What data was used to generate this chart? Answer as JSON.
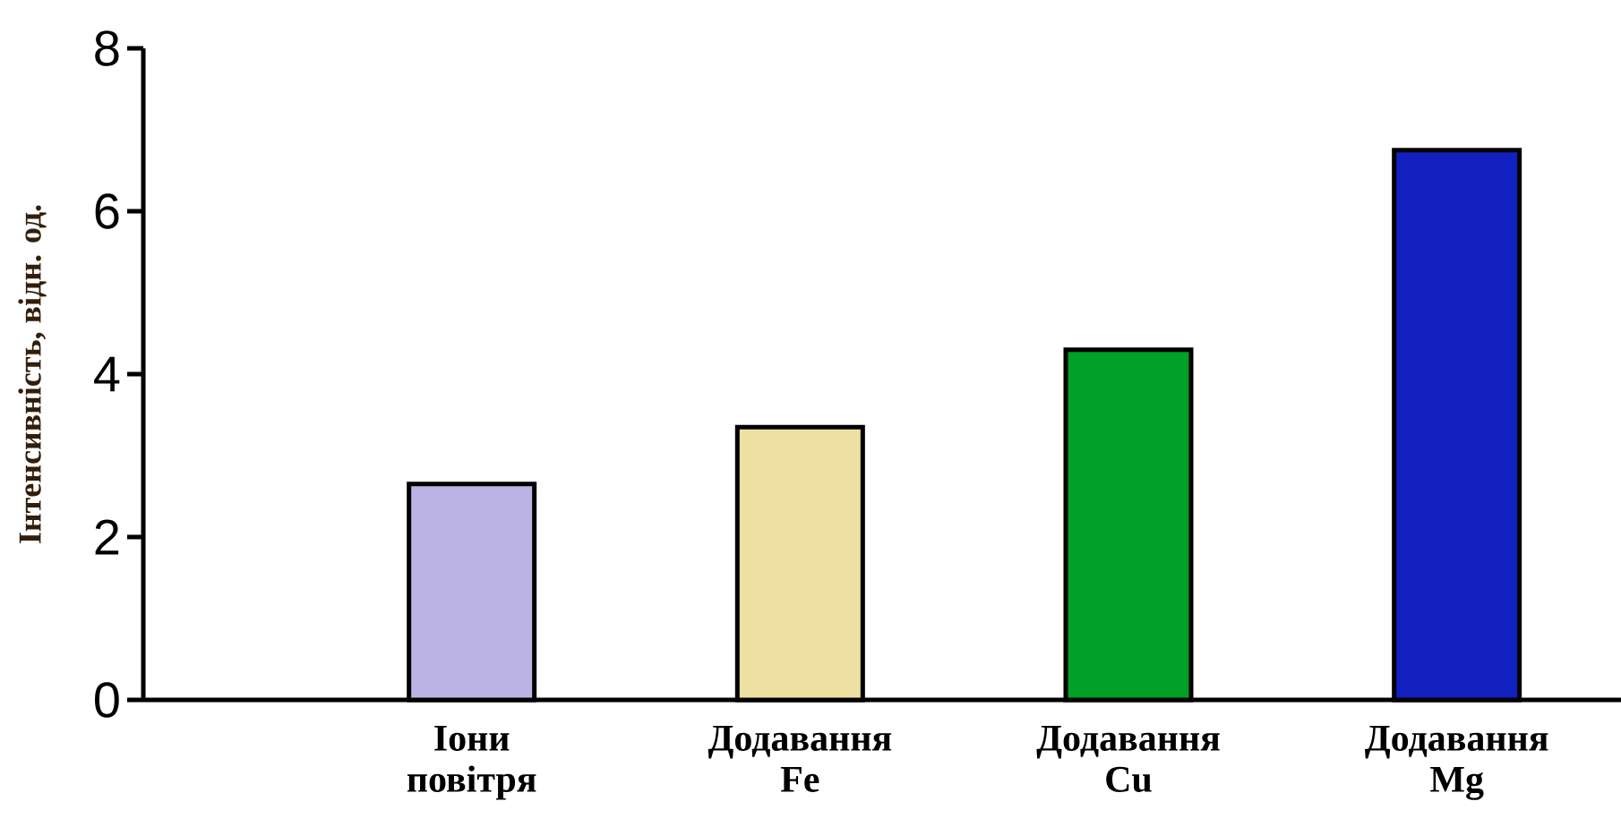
{
  "chart_data": {
    "type": "bar",
    "ylabel": "Інтенсивність, відн. од.",
    "categories": [
      "Іони повітря",
      "Додавання Fe",
      "Додавання Cu",
      "Додавання Mg"
    ],
    "values": [
      2.65,
      3.35,
      4.3,
      6.75
    ],
    "colors": [
      "#bbb3e3",
      "#ede0a0",
      "#009f25",
      "#1320c0"
    ],
    "ylim": [
      0,
      8
    ],
    "yticks": [
      0,
      2,
      4,
      6,
      8
    ]
  }
}
